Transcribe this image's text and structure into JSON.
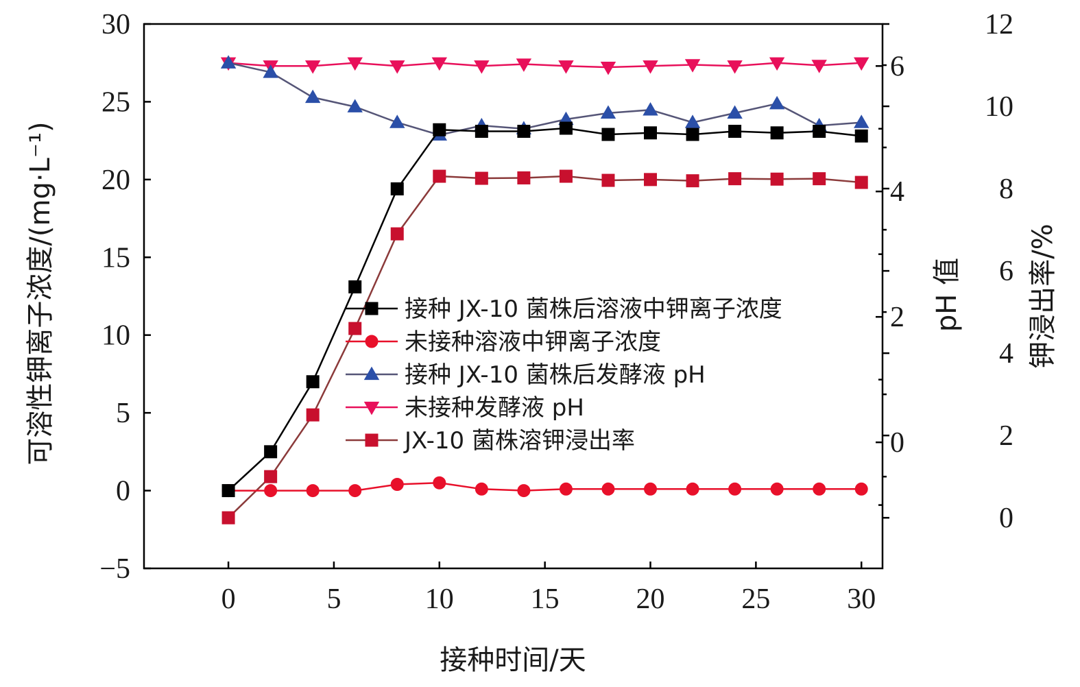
{
  "chart_data": {
    "type": "line",
    "xlabel": "接种时间/天",
    "ylabel_left": "可溶性钾离子浓度/(mg·L⁻¹)",
    "ylabel_right_inner": "pH 值",
    "ylabel_right_outer": "钾浸出率/%",
    "xlim": [
      -4,
      31
    ],
    "ylim_left": [
      -5,
      30
    ],
    "ylim_right_inner": [
      -2.01,
      6.67
    ],
    "ylim_right_outer": [
      -1.23,
      12
    ],
    "x_ticks": [
      0,
      5,
      10,
      15,
      20,
      25,
      30
    ],
    "y_left_ticks": [
      -5,
      0,
      5,
      10,
      15,
      20,
      25,
      30
    ],
    "y_left_tick_labels": [
      "−5",
      "0",
      "5",
      "10",
      "15",
      "20",
      "25",
      "30"
    ],
    "y_right_inner_ticks": [
      0,
      2,
      4,
      6
    ],
    "y_right_outer_ticks": [
      0,
      2,
      4,
      6,
      8,
      10,
      12
    ],
    "x": [
      0,
      2,
      4,
      6,
      8,
      10,
      12,
      14,
      16,
      18,
      20,
      22,
      24,
      26,
      28,
      30
    ],
    "legend_position": "center",
    "series": [
      {
        "name": "接种 JX-10 菌株后溶液中钾离子浓度",
        "axis": "left",
        "color": "#000000",
        "line_color": "#000000",
        "marker": "square",
        "values": [
          0,
          2.5,
          7,
          13.1,
          19.4,
          23.2,
          23.1,
          23.1,
          23.3,
          22.9,
          23.0,
          22.9,
          23.1,
          23.0,
          23.1,
          22.8
        ]
      },
      {
        "name": "未接种溶液中钾离子浓度",
        "axis": "left",
        "color": "#e8102a",
        "line_color": "#e8102a",
        "marker": "circle",
        "values": [
          0,
          0,
          0,
          0,
          0.4,
          0.5,
          0.1,
          0,
          0.1,
          0.1,
          0.1,
          0.1,
          0.1,
          0.1,
          0.1,
          0.1
        ]
      },
      {
        "name": "接种 JX-10 菌株后发酵液 pH",
        "axis": "right_inner",
        "color": "#2b4fa8",
        "line_color": "#555577",
        "marker": "triangle-up",
        "values": [
          6.05,
          5.9,
          5.5,
          5.35,
          5.1,
          4.9,
          5.05,
          5.0,
          5.15,
          5.25,
          5.3,
          5.1,
          5.25,
          5.4,
          5.05,
          5.1
        ]
      },
      {
        "name": "未接种发酵液 pH",
        "axis": "right_inner",
        "color": "#e8105a",
        "line_color": "#e8105a",
        "marker": "triangle-down",
        "values": [
          6.05,
          6.0,
          6.0,
          6.05,
          6.0,
          6.05,
          6.0,
          6.03,
          6.0,
          5.98,
          6.0,
          6.02,
          6.0,
          6.05,
          6.01,
          6.05
        ]
      },
      {
        "name": "JX-10 菌株溶钾浸出率",
        "axis": "right_outer",
        "color": "#c8102e",
        "line_color": "#8b3a3a",
        "marker": "square",
        "values": [
          0,
          1.0,
          2.5,
          4.6,
          6.9,
          8.3,
          8.25,
          8.26,
          8.3,
          8.2,
          8.22,
          8.19,
          8.24,
          8.23,
          8.24,
          8.15
        ]
      }
    ]
  }
}
